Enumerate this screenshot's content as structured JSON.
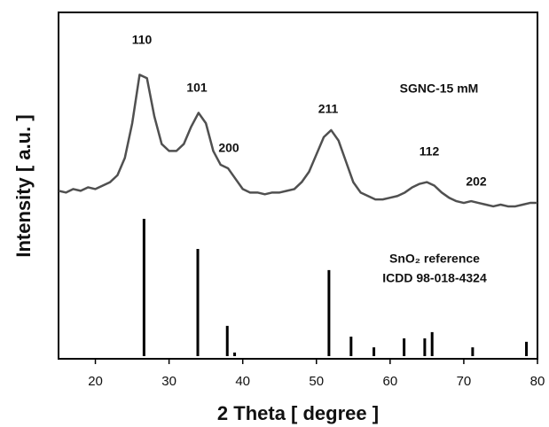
{
  "chart_data": {
    "type": "line",
    "x_label": "2 Theta [ degree ]",
    "y_label": "Intensity [ a.u. ]",
    "xlim": [
      15,
      80
    ],
    "xticks": [
      20,
      30,
      40,
      50,
      60,
      70,
      80
    ],
    "ylim": [
      0,
      100
    ],
    "x": [
      15,
      16,
      17,
      18,
      19,
      20,
      21,
      22,
      23,
      24,
      25,
      26,
      27,
      28,
      29,
      30,
      31,
      32,
      33,
      34,
      35,
      36,
      37,
      38,
      39,
      40,
      41,
      42,
      43,
      44,
      45,
      46,
      47,
      48,
      49,
      50,
      51,
      52,
      53,
      54,
      55,
      56,
      57,
      58,
      59,
      60,
      61,
      62,
      63,
      64,
      65,
      66,
      67,
      68,
      69,
      70,
      71,
      72,
      73,
      74,
      75,
      76,
      77,
      78,
      79,
      80
    ],
    "series": [
      {
        "name": "SGNC-15 mM",
        "color": "#505050",
        "values": [
          48.5,
          48,
          49,
          48.5,
          49.5,
          49,
          50,
          51,
          53,
          58,
          68,
          82,
          81,
          70,
          62,
          60,
          60,
          62,
          67,
          71,
          68,
          60,
          56,
          55,
          52,
          49,
          48,
          48,
          47.5,
          48,
          48,
          48.5,
          49,
          51,
          54,
          59,
          64,
          66,
          63,
          57,
          51,
          48,
          47,
          46,
          46,
          46.5,
          47,
          48,
          49.5,
          50.5,
          51,
          50,
          48,
          46.5,
          45.5,
          45,
          45.5,
          45,
          44.5,
          44,
          44.5,
          44,
          44,
          44.5,
          45,
          45
        ]
      }
    ],
    "reference": {
      "name": "SnO₂ reference",
      "source": "ICDD 98-018-4324",
      "color": "#000000",
      "x": [
        26.6,
        33.9,
        37.9,
        38.9,
        51.7,
        54.7,
        57.8,
        61.9,
        64.7,
        65.7,
        71.2,
        78.5
      ],
      "values": [
        40.4,
        31.7,
        9.5,
        1.8,
        25.6,
        6.4,
        3.3,
        5.9,
        5.9,
        7.7,
        3.3,
        4.9
      ]
    },
    "annotations": [
      "110",
      "101",
      "200",
      "211",
      "112",
      "202"
    ]
  }
}
